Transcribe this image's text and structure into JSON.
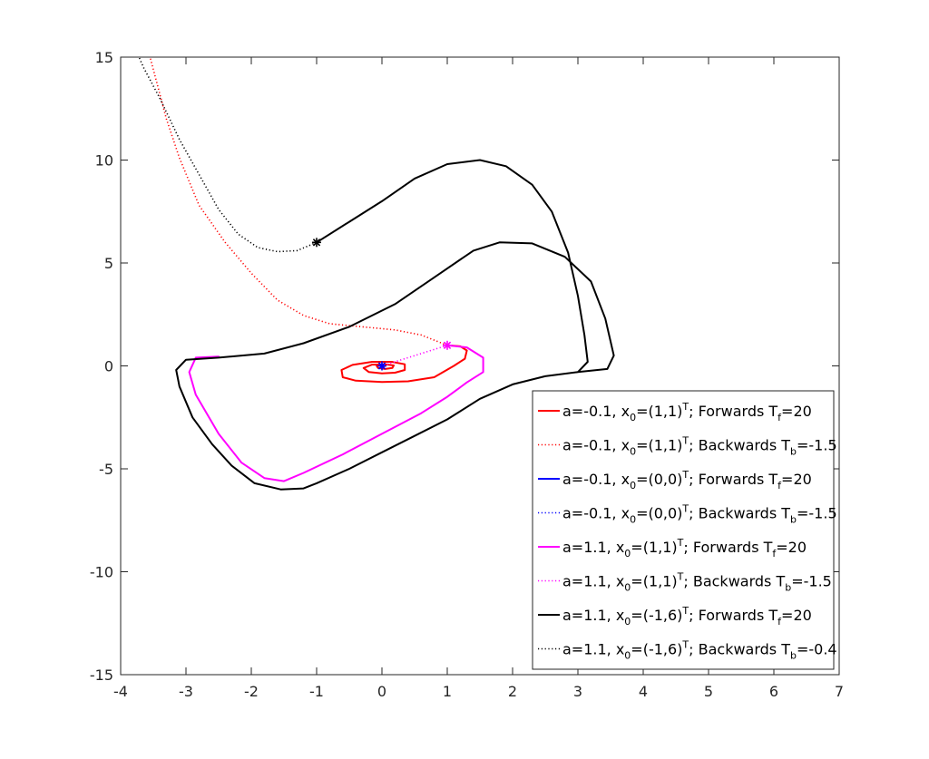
{
  "chart_data": {
    "type": "line",
    "title": "",
    "xlabel": "",
    "ylabel": "",
    "xlim": [
      -4,
      7
    ],
    "ylim": [
      -15,
      15
    ],
    "grid": false,
    "legend_location": "bottom-right",
    "x_ticks": [
      "-4",
      "-3",
      "-2",
      "-1",
      "0",
      "1",
      "2",
      "3",
      "4",
      "5",
      "6",
      "7"
    ],
    "y_ticks": [
      "-15",
      "-10",
      "-5",
      "0",
      "5",
      "10",
      "15"
    ],
    "series": [
      {
        "name": "a=-0.1, x0=(1,1)T; Forwards Tf=20",
        "legend": {
          "pre": "a=-0.1, x",
          "sub1": "0",
          "mid": "=(1,1)",
          "sup": "T",
          "post": "; Forwards T",
          "sub2": "f",
          "tail": "=20"
        },
        "color": "#ff0000",
        "style": "solid",
        "points": [
          [
            1.0,
            1.0
          ],
          [
            1.2,
            0.95
          ],
          [
            1.3,
            0.75
          ],
          [
            1.27,
            0.35
          ],
          [
            1.1,
            0.0
          ],
          [
            0.8,
            -0.55
          ],
          [
            0.4,
            -0.75
          ],
          [
            0.0,
            -0.78
          ],
          [
            -0.4,
            -0.72
          ],
          [
            -0.6,
            -0.55
          ],
          [
            -0.62,
            -0.2
          ],
          [
            -0.45,
            0.05
          ],
          [
            -0.15,
            0.2
          ],
          [
            0.15,
            0.2
          ],
          [
            0.35,
            0.08
          ],
          [
            0.35,
            -0.2
          ],
          [
            0.2,
            -0.33
          ],
          [
            0.0,
            -0.36
          ],
          [
            -0.2,
            -0.3
          ],
          [
            -0.28,
            -0.1
          ],
          [
            -0.15,
            0.06
          ],
          [
            0.05,
            0.08
          ],
          [
            0.18,
            0.02
          ],
          [
            0.16,
            -0.1
          ],
          [
            0.05,
            -0.15
          ],
          [
            -0.06,
            -0.1
          ],
          [
            -0.08,
            0.0
          ],
          [
            0.0,
            0.03
          ],
          [
            0.05,
            0.01
          ],
          [
            0.03,
            -0.03
          ],
          [
            0.0,
            -0.02
          ]
        ]
      },
      {
        "name": "a=-0.1, x0=(1,1)T; Backwards Tb=-1.5",
        "legend": {
          "pre": "a=-0.1, x",
          "sub1": "0",
          "mid": "=(1,1)",
          "sup": "T",
          "post": "; Backwards T",
          "sub2": "b",
          "tail": "=-1.5"
        },
        "color": "#ff0000",
        "style": "dotted",
        "points": [
          [
            1.0,
            1.0
          ],
          [
            0.6,
            1.5
          ],
          [
            0.2,
            1.75
          ],
          [
            -0.3,
            1.9
          ],
          [
            -0.8,
            2.05
          ],
          [
            -1.2,
            2.45
          ],
          [
            -1.6,
            3.2
          ],
          [
            -2.0,
            4.5
          ],
          [
            -2.4,
            6.0
          ],
          [
            -2.8,
            7.8
          ],
          [
            -3.1,
            10.1
          ],
          [
            -3.3,
            12.0
          ],
          [
            -3.45,
            13.8
          ],
          [
            -3.55,
            15.0
          ]
        ]
      },
      {
        "name": "a=-0.1, x0=(0,0)T; Forwards Tf=20",
        "legend": {
          "pre": "a=-0.1, x",
          "sub1": "0",
          "mid": "=(0,0)",
          "sup": "T",
          "post": "; Forwards T",
          "sub2": "f",
          "tail": "=20"
        },
        "color": "#0000ff",
        "style": "solid",
        "points": [
          [
            0.0,
            0.0
          ],
          [
            0.001,
            0.0
          ]
        ]
      },
      {
        "name": "a=-0.1, x0=(0,0)T; Backwards Tb=-1.5",
        "legend": {
          "pre": "a=-0.1, x",
          "sub1": "0",
          "mid": "=(0,0)",
          "sup": "T",
          "post": "; Backwards T",
          "sub2": "b",
          "tail": "=-1.5"
        },
        "color": "#0000ff",
        "style": "dotted",
        "points": [
          [
            0.0,
            0.0
          ],
          [
            -0.001,
            0.0
          ]
        ]
      },
      {
        "name": "a=1.1, x0=(1,1)T; Forwards Tf=20",
        "legend": {
          "pre": "a=1.1, x",
          "sub1": "0",
          "mid": "=(1,1)",
          "sup": "T",
          "post": "; Forwards T",
          "sub2": "f",
          "tail": "=20"
        },
        "color": "#ff00ff",
        "style": "solid",
        "points": [
          [
            1.0,
            1.0
          ],
          [
            1.3,
            0.9
          ],
          [
            1.55,
            0.4
          ],
          [
            1.55,
            -0.3
          ],
          [
            1.3,
            -0.8
          ],
          [
            1.0,
            -1.5
          ],
          [
            0.6,
            -2.3
          ],
          [
            0.0,
            -3.3
          ],
          [
            -0.6,
            -4.3
          ],
          [
            -1.2,
            -5.2
          ],
          [
            -1.5,
            -5.6
          ],
          [
            -1.8,
            -5.45
          ],
          [
            -2.15,
            -4.7
          ],
          [
            -2.5,
            -3.3
          ],
          [
            -2.85,
            -1.4
          ],
          [
            -2.95,
            -0.3
          ],
          [
            -2.85,
            0.4
          ],
          [
            -2.5,
            0.45
          ]
        ]
      },
      {
        "name": "a=1.1, x0=(1,1)T; Backwards Tb=-1.5",
        "legend": {
          "pre": "a=1.1, x",
          "sub1": "0",
          "mid": "=(1,1)",
          "sup": "T",
          "post": "; Backwards T",
          "sub2": "b",
          "tail": "=-1.5"
        },
        "color": "#ff00ff",
        "style": "dotted",
        "points": [
          [
            1.0,
            1.0
          ],
          [
            0.6,
            0.6
          ],
          [
            0.3,
            0.3
          ],
          [
            0.0,
            0.0
          ]
        ]
      },
      {
        "name": "a=1.1, x0=(-1,6)T; Forwards Tf=20",
        "legend": {
          "pre": "a=1.1, x",
          "sub1": "0",
          "mid": "=(-1,6)",
          "sup": "T",
          "post": "; Forwards T",
          "sub2": "f",
          "tail": "=20"
        },
        "color": "#000000",
        "style": "solid",
        "points": [
          [
            -1.0,
            6.0
          ],
          [
            -0.5,
            7.0
          ],
          [
            0.0,
            8.0
          ],
          [
            0.5,
            9.1
          ],
          [
            1.0,
            9.8
          ],
          [
            1.5,
            10.0
          ],
          [
            1.9,
            9.7
          ],
          [
            2.3,
            8.8
          ],
          [
            2.6,
            7.5
          ],
          [
            2.85,
            5.5
          ],
          [
            3.0,
            3.4
          ],
          [
            3.1,
            1.5
          ],
          [
            3.15,
            0.2
          ],
          [
            3.0,
            -0.3
          ],
          [
            2.5,
            -0.5
          ],
          [
            2.0,
            -0.9
          ],
          [
            1.5,
            -1.6
          ],
          [
            1.0,
            -2.6
          ],
          [
            0.5,
            -3.4
          ],
          [
            0.0,
            -4.2
          ],
          [
            -0.5,
            -5.0
          ],
          [
            -1.0,
            -5.7
          ],
          [
            -1.2,
            -5.95
          ],
          [
            -1.55,
            -6.0
          ],
          [
            -1.95,
            -5.7
          ],
          [
            -2.3,
            -4.85
          ],
          [
            -2.6,
            -3.8
          ],
          [
            -2.9,
            -2.5
          ],
          [
            -3.1,
            -1.0
          ],
          [
            -3.15,
            -0.2
          ],
          [
            -3.0,
            0.3
          ],
          [
            -2.5,
            0.4
          ],
          [
            -1.8,
            0.6
          ],
          [
            -1.2,
            1.1
          ],
          [
            -0.5,
            1.9
          ],
          [
            0.2,
            3.0
          ],
          [
            0.8,
            4.3
          ],
          [
            1.4,
            5.6
          ],
          [
            1.8,
            6.0
          ],
          [
            2.3,
            5.95
          ],
          [
            2.8,
            5.3
          ],
          [
            3.2,
            4.1
          ],
          [
            3.42,
            2.3
          ],
          [
            3.55,
            0.5
          ],
          [
            3.45,
            -0.15
          ],
          [
            3.0,
            -0.3
          ]
        ]
      },
      {
        "name": "a=1.1, x0=(-1,6)T; Backwards Tb=-0.4",
        "legend": {
          "pre": "a=1.1, x",
          "sub1": "0",
          "mid": "=(-1,6)",
          "sup": "T",
          "post": "; Backwards T",
          "sub2": "b",
          "tail": "=-0.4"
        },
        "color": "#000000",
        "style": "dotted",
        "points": [
          [
            -1.0,
            6.0
          ],
          [
            -1.3,
            5.6
          ],
          [
            -1.6,
            5.55
          ],
          [
            -1.9,
            5.75
          ],
          [
            -2.2,
            6.4
          ],
          [
            -2.5,
            7.6
          ],
          [
            -2.8,
            9.3
          ],
          [
            -3.1,
            11.0
          ],
          [
            -3.4,
            13.0
          ],
          [
            -3.65,
            14.5
          ],
          [
            -3.72,
            15.0
          ]
        ]
      }
    ],
    "markers": [
      {
        "x": 1.0,
        "y": 1.0,
        "color": "#ff00ff",
        "symbol": "asterisk"
      },
      {
        "x": -1.0,
        "y": 6.0,
        "color": "#000000",
        "symbol": "asterisk"
      },
      {
        "x": 0.0,
        "y": 0.0,
        "color": "#0000ff",
        "symbol": "asterisk"
      }
    ]
  }
}
